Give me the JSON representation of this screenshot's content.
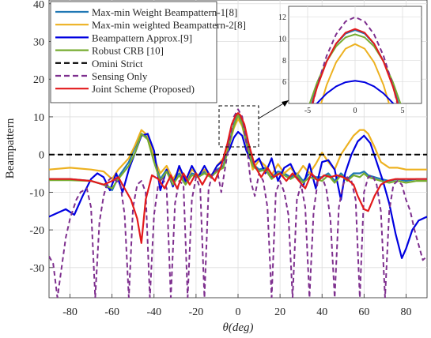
{
  "chart_data": {
    "type": "line",
    "xlabel": "θ(deg)",
    "ylabel": "Beampattern",
    "xlim": [
      -90,
      90
    ],
    "ylim": [
      -38,
      41
    ],
    "xticks": [
      -80,
      -60,
      -40,
      -20,
      0,
      20,
      40,
      60,
      80
    ],
    "yticks": [
      -30,
      -20,
      -10,
      0,
      10,
      20,
      30,
      40
    ],
    "grid": true,
    "legend_position": "top-left",
    "series": [
      {
        "name": "Max-min Weight Beampattern-1[8]",
        "color": "#1f77b4",
        "style": "solid",
        "x": [
          -90,
          -80,
          -70,
          -64,
          -60,
          -57,
          -52,
          -49,
          -46,
          -43,
          -40,
          -37,
          -34,
          -31,
          -28,
          -25,
          -22,
          -19,
          -16,
          -13,
          -10,
          -7,
          -4,
          -2,
          0,
          2,
          4,
          7,
          10,
          13,
          16,
          19,
          22,
          25,
          28,
          31,
          34,
          37,
          40,
          43,
          46,
          49,
          52,
          55,
          58,
          60,
          62,
          65,
          68,
          72,
          76,
          80,
          85,
          90
        ],
        "y": [
          -6.5,
          -6.5,
          -7,
          -8,
          -9.5,
          -6,
          -2,
          2,
          5.5,
          4.5,
          -1,
          -6.5,
          -4,
          -7,
          -5,
          -7.5,
          -5,
          -5.5,
          -4.5,
          -5.5,
          -4,
          -3,
          3.5,
          8,
          10.8,
          8.5,
          3.5,
          -2.5,
          -4,
          -3.5,
          -6,
          -4.5,
          -5,
          -6,
          -5,
          -7,
          -5,
          -6,
          -6,
          -5,
          -7,
          -5,
          -6.5,
          -5,
          -5,
          -4.5,
          -5.5,
          -6,
          -6.5,
          -7,
          -6.5,
          -7,
          -6.5,
          -6.5
        ]
      },
      {
        "name": "Max-min weighted Beampattern-2[8]",
        "color": "#edb120",
        "style": "solid",
        "x": [
          -90,
          -80,
          -70,
          -64,
          -60,
          -57,
          -52,
          -49,
          -46,
          -43,
          -40,
          -37,
          -34,
          -31,
          -28,
          -25,
          -22,
          -19,
          -16,
          -13,
          -10,
          -7,
          -4,
          -2,
          0,
          2,
          4,
          7,
          10,
          13,
          16,
          19,
          22,
          25,
          28,
          31,
          34,
          37,
          40,
          43,
          46,
          49,
          52,
          55,
          58,
          60,
          62,
          65,
          68,
          72,
          76,
          80,
          85,
          90
        ],
        "y": [
          -4,
          -3.5,
          -4,
          -4.5,
          -6.5,
          -4,
          -1,
          2.5,
          6.5,
          5,
          -1,
          -5,
          -3,
          -6.5,
          -4,
          -7,
          -4,
          -5.5,
          -4,
          -6,
          -3,
          -1,
          3,
          7,
          9.5,
          7.5,
          3,
          -4,
          -1.5,
          -3,
          -5.5,
          -2.5,
          -5,
          -3.5,
          -5.5,
          -3,
          -5,
          -2.5,
          0.5,
          -2,
          -4,
          0,
          2.5,
          5,
          6.5,
          6.5,
          5.5,
          2,
          -2,
          -3.5,
          -3.5,
          -4,
          -4,
          -4
        ]
      },
      {
        "name": "Beampattern Approx.[9]",
        "color": "#0000e0",
        "style": "solid",
        "x": [
          -90,
          -86,
          -82,
          -78,
          -74,
          -70,
          -67,
          -64,
          -61,
          -58,
          -55,
          -52,
          -49,
          -46,
          -43,
          -40,
          -37,
          -34,
          -31,
          -28,
          -25,
          -22,
          -19,
          -16,
          -13,
          -10,
          -7,
          -4,
          -2,
          0,
          2,
          4,
          7,
          10,
          13,
          16,
          19,
          22,
          25,
          28,
          31,
          34,
          37,
          40,
          43,
          46,
          49,
          51,
          54,
          57,
          60,
          63,
          66,
          69,
          72,
          75,
          78,
          80,
          83,
          86,
          90
        ],
        "y": [
          -16.5,
          -15.5,
          -14.5,
          -16,
          -11,
          -6.5,
          -5,
          -6,
          -9.5,
          -5,
          -10,
          -4,
          0.5,
          5,
          5.5,
          1,
          -9.5,
          -4,
          -8.5,
          -3,
          -7,
          -3,
          -6,
          -3,
          -6,
          -3,
          -1.5,
          1.5,
          4.5,
          6,
          5,
          1,
          -2.5,
          -1,
          -5,
          -1,
          -7,
          -3.5,
          -2.5,
          -6,
          -8.5,
          -2.5,
          -9,
          -2,
          -1.5,
          -4,
          -12,
          -5,
          0,
          3.5,
          5,
          3,
          -2,
          -7,
          -13,
          -21,
          -27.5,
          -25,
          -20,
          -17.5,
          -16.5
        ]
      },
      {
        "name": "Robust CRB [10]",
        "color": "#77ac30",
        "style": "solid",
        "x": [
          -90,
          -80,
          -70,
          -64,
          -60,
          -57,
          -52,
          -49,
          -46,
          -43,
          -40,
          -37,
          -34,
          -31,
          -28,
          -25,
          -22,
          -19,
          -16,
          -13,
          -10,
          -7,
          -4,
          -2,
          0,
          2,
          4,
          7,
          10,
          13,
          16,
          19,
          22,
          25,
          28,
          31,
          34,
          37,
          40,
          43,
          46,
          49,
          52,
          55,
          58,
          60,
          62,
          65,
          68,
          72,
          76,
          80,
          85,
          90
        ],
        "y": [
          -6.8,
          -6.8,
          -7,
          -8,
          -9,
          -6.5,
          -3,
          0.5,
          5.5,
          4,
          -2,
          -7,
          -4.5,
          -8,
          -5.5,
          -8,
          -5.5,
          -6,
          -5,
          -6,
          -4.5,
          -3.5,
          3,
          7.5,
          10.5,
          8,
          3,
          -3,
          -4.5,
          -4,
          -6.5,
          -5,
          -5.5,
          -6.5,
          -5.5,
          -7.5,
          -6,
          -6.5,
          -7,
          -5.5,
          -7.5,
          -5.5,
          -7,
          -5.5,
          -6,
          -5,
          -6,
          -6.5,
          -7,
          -7.5,
          -7,
          -7.5,
          -7,
          -7
        ]
      },
      {
        "name": "Omini Strict",
        "color": "#000000",
        "style": "dashed",
        "x": [
          -90,
          90
        ],
        "y": [
          0,
          0
        ]
      },
      {
        "name": "Sensing Only",
        "color": "#7e2f8e",
        "style": "dashed",
        "x": [
          -90,
          -88,
          -86,
          -84,
          -82,
          -80,
          -77,
          -75,
          -72,
          -70,
          -68,
          -66,
          -64,
          -62,
          -60,
          -58,
          -56,
          -54,
          -52,
          -50,
          -48,
          -46,
          -44,
          -42,
          -40,
          -38,
          -36,
          -34,
          -32,
          -30,
          -28,
          -26,
          -24,
          -22,
          -20,
          -18,
          -16,
          -14,
          -12,
          -10,
          -8,
          -6,
          -4,
          -2,
          0,
          2,
          4,
          6,
          8,
          10,
          12,
          14,
          16,
          18,
          20,
          22,
          24,
          26,
          28,
          30,
          32,
          34,
          36,
          38,
          40,
          42,
          44,
          46,
          48,
          50,
          52,
          54,
          56,
          58,
          60,
          62,
          64,
          66,
          68,
          70,
          72,
          74,
          76,
          78,
          80,
          82,
          84,
          86,
          88,
          90
        ],
        "y": [
          -27,
          -29,
          -38,
          -30,
          -22,
          -17,
          -12,
          -10,
          -9,
          -14,
          -38,
          -18,
          -11,
          -7,
          -6,
          -7,
          -8,
          -16,
          -38,
          -14,
          -8,
          -7,
          -10,
          -38,
          -16,
          -8,
          -6,
          -9,
          -38,
          -13,
          -7,
          -8,
          -38,
          -12,
          -6,
          -9,
          -38,
          -9,
          -5,
          -4,
          -10,
          -3,
          4,
          10,
          12,
          10,
          3,
          -7,
          -11,
          -5,
          -7,
          -14,
          -38,
          -10,
          -7,
          -10,
          -16,
          -38,
          -12,
          -8,
          -14,
          -38,
          -15,
          -7,
          -6,
          -9,
          -17,
          -38,
          -14,
          -8,
          -6,
          -7,
          -12,
          -38,
          -10,
          -6,
          -5.5,
          -8,
          -15,
          -38,
          -15,
          -8,
          -7,
          -8,
          -12,
          -15,
          -20,
          -24,
          -28,
          -27
        ]
      },
      {
        "name": "Joint Scheme (Proposed)",
        "color": "#e31a1c",
        "style": "solid",
        "x": [
          -90,
          -80,
          -70,
          -64,
          -60,
          -57,
          -54,
          -51,
          -48,
          -46,
          -44,
          -41,
          -38,
          -35,
          -32,
          -29,
          -26,
          -23,
          -20,
          -17,
          -14,
          -11,
          -8,
          -5,
          -3,
          -1,
          0,
          1,
          3,
          5,
          8,
          11,
          14,
          17,
          20,
          23,
          26,
          29,
          32,
          35,
          38,
          41,
          44,
          47,
          50,
          53,
          55,
          57,
          60,
          62,
          65,
          68,
          71,
          75,
          80,
          85,
          90
        ],
        "y": [
          -6.5,
          -6.5,
          -7,
          -8,
          -7,
          -6,
          -9,
          -12,
          -17,
          -23.5,
          -12,
          -5.5,
          -6.5,
          -9,
          -5.5,
          -9,
          -5,
          -8,
          -5,
          -8,
          -5,
          -7,
          -3,
          3,
          8,
          10.5,
          11,
          10.5,
          8,
          3,
          -3,
          -6,
          -3.5,
          -6,
          -5,
          -7,
          -5,
          -7,
          -9,
          -5,
          -7,
          -5.5,
          -6,
          -5.5,
          -6,
          -7,
          -8,
          -11,
          -14.5,
          -15,
          -11,
          -8,
          -7,
          -6.5,
          -6.5,
          -6.5,
          -6.5
        ]
      }
    ],
    "inset": {
      "xlim": [
        -7,
        7
      ],
      "ylim": [
        4,
        13
      ],
      "xticks": [
        -5,
        0,
        5
      ],
      "yticks": [
        6,
        8,
        10,
        12
      ],
      "series_x": [
        -7,
        -6,
        -5,
        -4,
        -3,
        -2,
        -1,
        0,
        1,
        2,
        3,
        4,
        5,
        6,
        7
      ]
    }
  }
}
